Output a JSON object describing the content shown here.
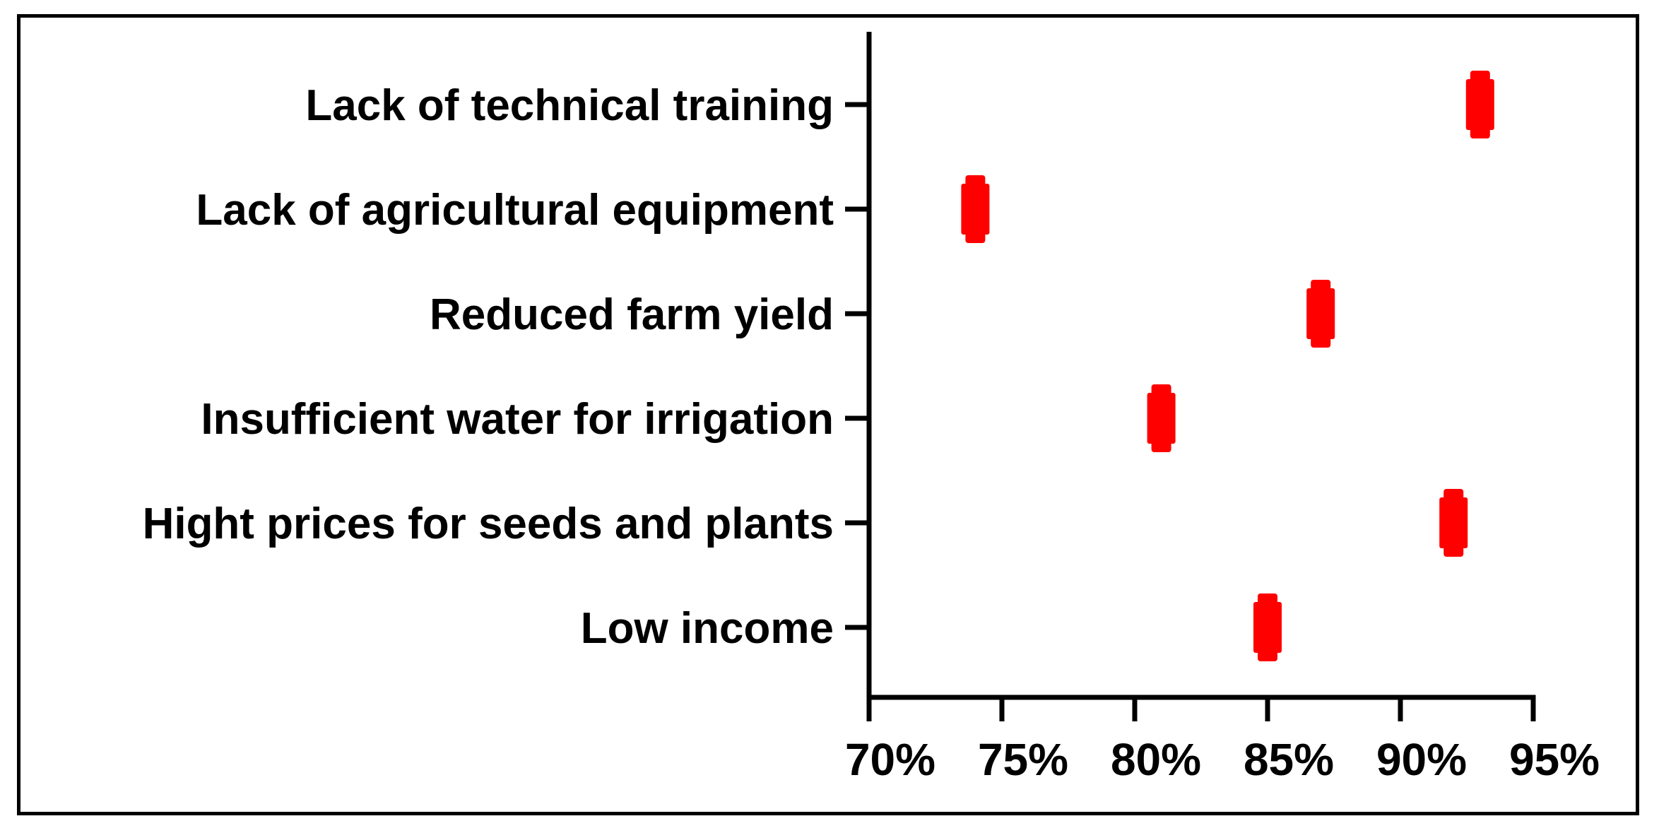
{
  "chart_data": {
    "type": "scatter",
    "title": "",
    "xlabel": "",
    "ylabel": "",
    "categories": [
      "Lack of technical training",
      "Lack of agricultural equipment",
      "Reduced farm yield",
      "Insufficient water for irrigation",
      "Hight prices for seeds and plants",
      "Low income"
    ],
    "values": [
      93,
      74,
      87,
      81,
      92,
      85
    ],
    "xlim": [
      70,
      95
    ],
    "xticks": [
      {
        "value": 70,
        "label": "70%"
      },
      {
        "value": 75,
        "label": "75%"
      },
      {
        "value": 80,
        "label": "80%"
      },
      {
        "value": 85,
        "label": "85%"
      },
      {
        "value": 90,
        "label": "90%"
      },
      {
        "value": 95,
        "label": "95%"
      }
    ],
    "grid": false,
    "legend": "none",
    "marker_color": "#ff0000",
    "axis_color": "#000000"
  }
}
